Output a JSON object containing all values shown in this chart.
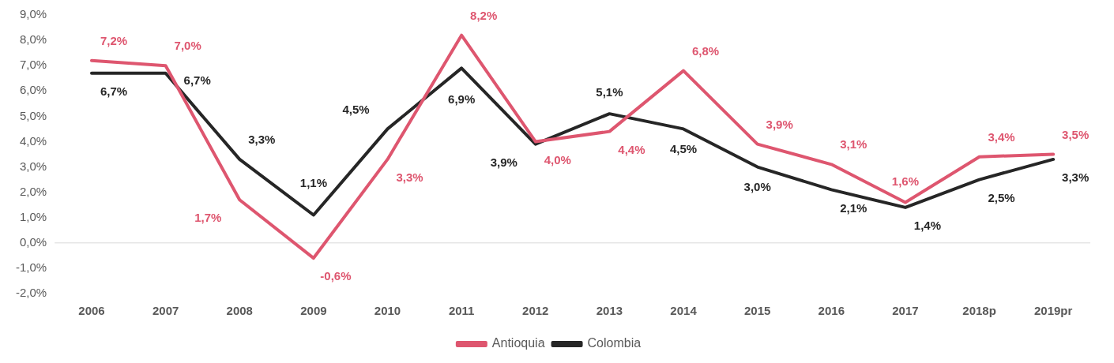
{
  "chart_data": {
    "type": "line",
    "categories": [
      "2006",
      "2007",
      "2008",
      "2009",
      "2010",
      "2011",
      "2012",
      "2013",
      "2014",
      "2015",
      "2016",
      "2017",
      "2018p",
      "2019pr"
    ],
    "series": [
      {
        "name": "Antioquia",
        "color": "#de566f",
        "values": [
          7.2,
          7.0,
          1.7,
          -0.6,
          3.3,
          8.2,
          4.0,
          4.4,
          6.8,
          3.9,
          3.1,
          1.6,
          3.4,
          3.5
        ],
        "value_labels": [
          "7,2%",
          "7,0%",
          "1,7%",
          "-0,6%",
          "3,3%",
          "8,2%",
          "4,0%",
          "4,4%",
          "6,8%",
          "3,9%",
          "3,1%",
          "1,6%",
          "3,4%",
          "3,5%"
        ]
      },
      {
        "name": "Colombia",
        "color": "#262626",
        "values": [
          6.7,
          6.7,
          3.3,
          1.1,
          4.5,
          6.9,
          3.9,
          5.1,
          4.5,
          3.0,
          2.1,
          1.4,
          2.5,
          3.3
        ],
        "value_labels": [
          "6,7%",
          "6,7%",
          "3,3%",
          "1,1%",
          "4,5%",
          "6,9%",
          "3,9%",
          "5,1%",
          "4,5%",
          "3,0%",
          "2,1%",
          "1,4%",
          "2,5%",
          "3,3%"
        ]
      }
    ],
    "ylim": [
      -2,
      9
    ],
    "yticks": [
      {
        "value": -2,
        "label": "-2,0%"
      },
      {
        "value": -1,
        "label": "-1,0%"
      },
      {
        "value": 0,
        "label": "0,0%"
      },
      {
        "value": 1,
        "label": "1,0%"
      },
      {
        "value": 2,
        "label": "2,0%"
      },
      {
        "value": 3,
        "label": "3,0%"
      },
      {
        "value": 4,
        "label": "4,0%"
      },
      {
        "value": 5,
        "label": "5,0%"
      },
      {
        "value": 6,
        "label": "6,0%"
      },
      {
        "value": 7,
        "label": "7,0%"
      },
      {
        "value": 8,
        "label": "8,0%"
      },
      {
        "value": 9,
        "label": "9,0%"
      }
    ],
    "ref_lines": [
      {
        "axis": "y",
        "value": 0,
        "color": "#d9d9d9"
      }
    ],
    "grid": false,
    "legend": "bottom",
    "marker": "none",
    "line_style": "solid"
  }
}
